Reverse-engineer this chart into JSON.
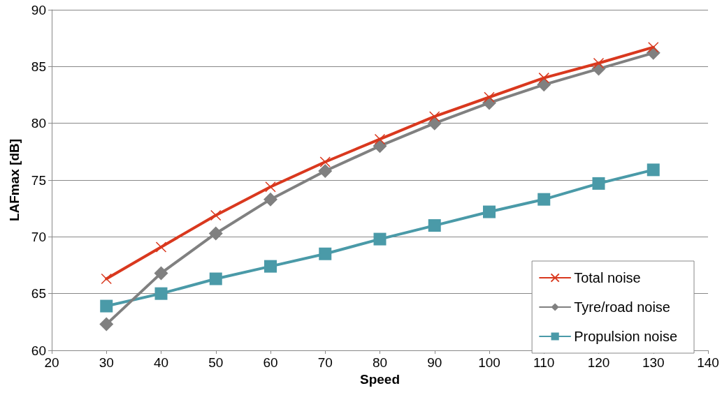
{
  "chart_data": {
    "type": "line",
    "xlabel": "Speed",
    "ylabel": "LAFmax [dB]",
    "x": [
      30,
      40,
      50,
      60,
      70,
      80,
      90,
      100,
      110,
      120,
      130
    ],
    "series": [
      {
        "name": "Total noise",
        "color": "#d9381e",
        "marker": "cross",
        "values": [
          66.3,
          69.1,
          71.9,
          74.4,
          76.6,
          78.6,
          80.6,
          82.3,
          84.0,
          85.3,
          86.7
        ]
      },
      {
        "name": "Tyre/road noise",
        "color": "#808080",
        "marker": "diamond",
        "values": [
          62.3,
          66.8,
          70.3,
          73.3,
          75.8,
          78.0,
          80.0,
          81.8,
          83.4,
          84.8,
          86.2
        ]
      },
      {
        "name": "Propulsion noise",
        "color": "#4a9aa8",
        "marker": "square",
        "values": [
          63.9,
          65.0,
          66.3,
          67.4,
          68.5,
          69.8,
          71.0,
          72.2,
          73.3,
          74.7,
          75.9
        ]
      }
    ],
    "xlim": [
      20,
      140
    ],
    "xticks": [
      20,
      30,
      40,
      50,
      60,
      70,
      80,
      90,
      100,
      110,
      120,
      130,
      140
    ],
    "ylim": [
      60,
      90
    ],
    "yticks": [
      60,
      65,
      70,
      75,
      80,
      85,
      90
    ],
    "grid": "y",
    "legend": "bottom right",
    "line_style": "solid"
  }
}
